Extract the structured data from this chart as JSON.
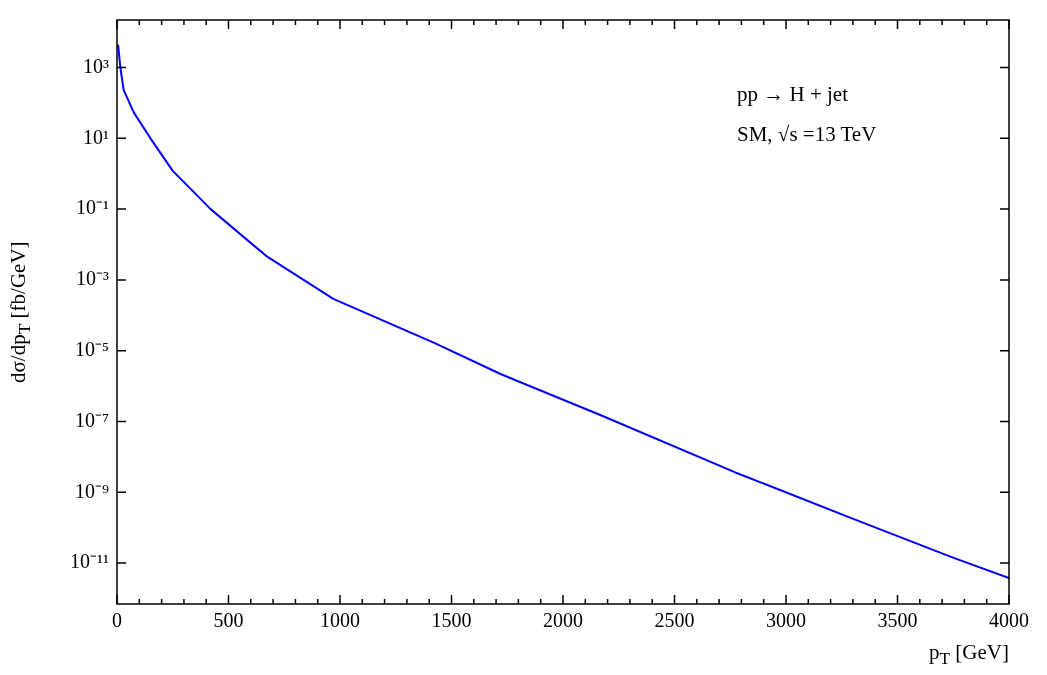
{
  "chart_data": {
    "type": "line",
    "xlabel": "p$_{T}$ [GeV]",
    "ylabel": "dσ/dp$_{T}$ [fb/GeV]",
    "annotations": [
      "pp → H + jet",
      "SM, √s =13 TeV"
    ],
    "x": [
      5,
      15,
      30,
      75,
      150,
      250,
      420,
      670,
      970,
      1420,
      1720,
      2170,
      2770,
      3290,
      3740,
      4000
    ],
    "series": [
      {
        "color": "#0000ff",
        "values": [
          4400,
          1000,
          230,
          54,
          10,
          1.2,
          0.1,
          0.0047,
          0.00029,
          1.7e-05,
          2.2e-06,
          1.5e-07,
          3.7e-09,
          1.9e-10,
          1.5e-11,
          3.8e-12
        ]
      }
    ],
    "xlim": [
      0,
      4000
    ],
    "xticks": [
      0,
      {
        "value": 100,
        "label": null
      },
      {
        "value": 200,
        "label": null
      },
      {
        "value": 300,
        "label": null
      },
      {
        "value": 400,
        "label": null
      },
      500,
      {
        "value": 600,
        "label": null
      },
      {
        "value": 700,
        "label": null
      },
      {
        "value": 800,
        "label": null
      },
      {
        "value": 900,
        "label": null
      },
      1000,
      {
        "value": 1100,
        "label": null
      },
      {
        "value": 1200,
        "label": null
      },
      {
        "value": 1300,
        "label": null
      },
      {
        "value": 1400,
        "label": null
      },
      1500,
      {
        "value": 1600,
        "label": null
      },
      {
        "value": 1700,
        "label": null
      },
      {
        "value": 1800,
        "label": null
      },
      {
        "value": 1900,
        "label": null
      },
      2000,
      {
        "value": 2100,
        "label": null
      },
      {
        "value": 2200,
        "label": null
      },
      {
        "value": 2300,
        "label": null
      },
      {
        "value": 2400,
        "label": null
      },
      2500,
      {
        "value": 2600,
        "label": null
      },
      {
        "value": 2700,
        "label": null
      },
      {
        "value": 2800,
        "label": null
      },
      {
        "value": 2900,
        "label": null
      },
      3000,
      {
        "value": 3100,
        "label": null
      },
      {
        "value": 3200,
        "label": null
      },
      {
        "value": 3300,
        "label": null
      },
      {
        "value": 3400,
        "label": null
      },
      3500,
      {
        "value": 3600,
        "label": null
      },
      {
        "value": 3700,
        "label": null
      },
      {
        "value": 3800,
        "label": null
      },
      {
        "value": 3900,
        "label": null
      },
      4000
    ],
    "ylim": [
      7e-13,
      22000
    ],
    "yticks": [
      {
        "value": 1000,
        "label": "10³"
      },
      {
        "value": 10,
        "label": "10¹"
      },
      {
        "value": 0.1,
        "label": "10⁻¹"
      },
      {
        "value": 0.001,
        "label": "10⁻³"
      },
      {
        "value": 1e-05,
        "label": "10⁻⁵"
      },
      {
        "value": 1e-07,
        "label": "10⁻⁷"
      },
      {
        "value": 1e-09,
        "label": "10⁻⁹"
      },
      {
        "value": 1e-11,
        "label": "10⁻¹¹"
      }
    ],
    "log": "y",
    "grid": false,
    "legend": false,
    "marker": "none",
    "line_style": "solid"
  }
}
